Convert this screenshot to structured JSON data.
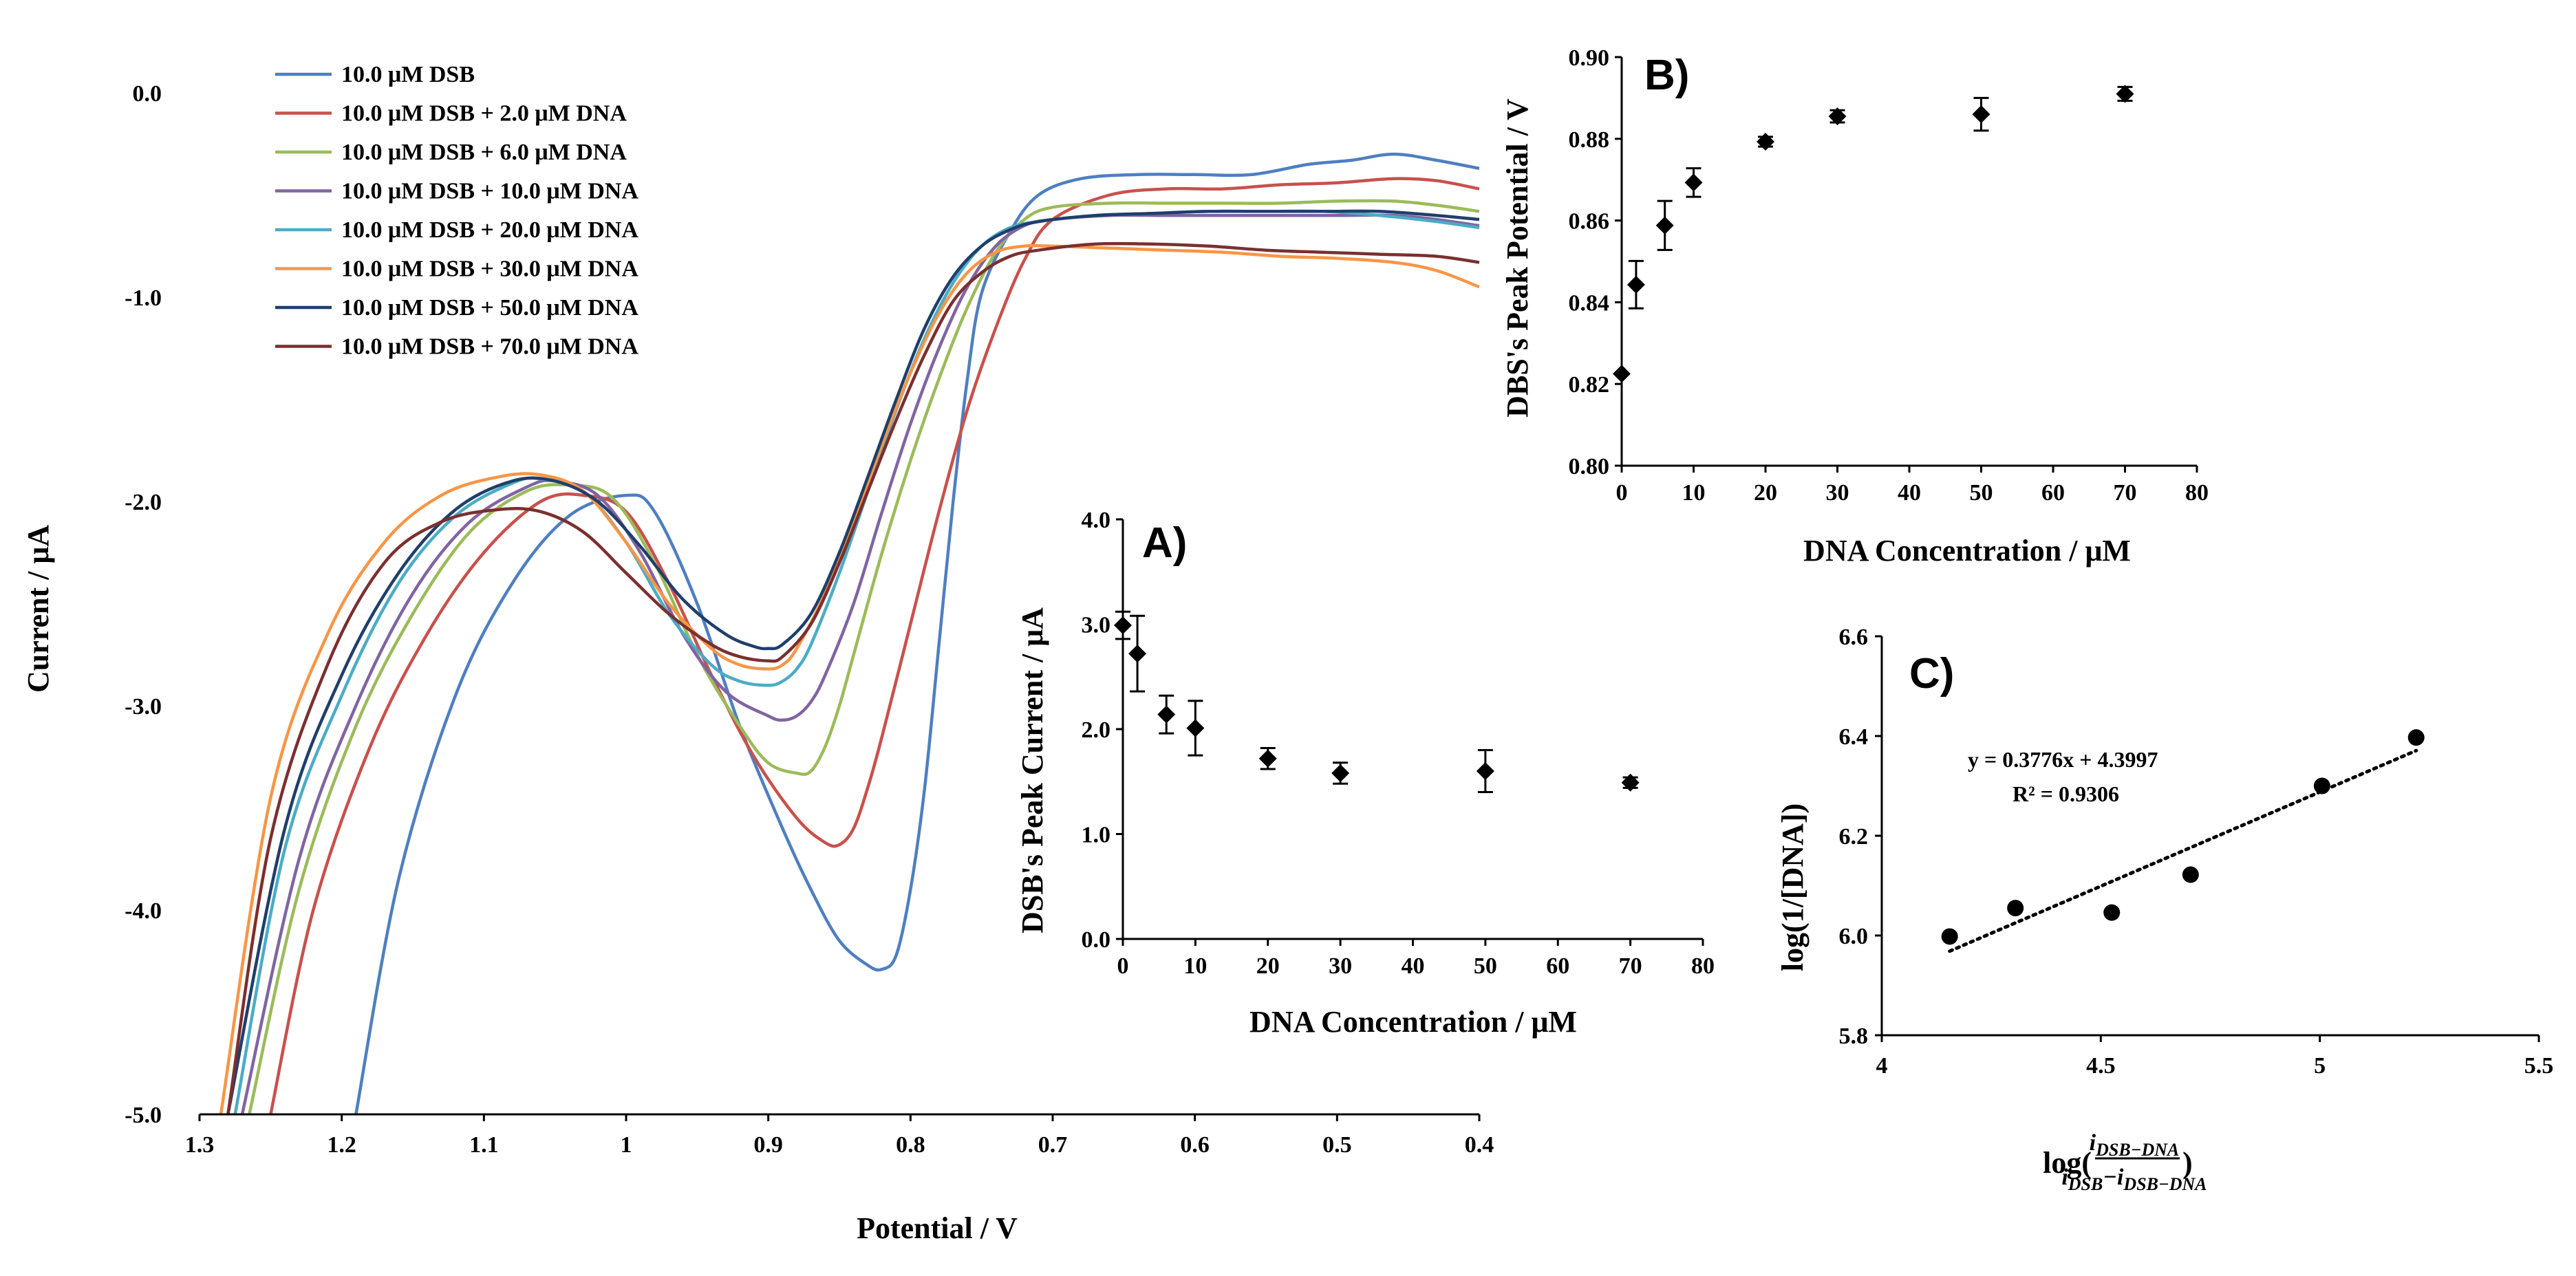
{
  "chart_data": [
    {
      "id": "main",
      "type": "line",
      "title": "",
      "xlabel": "Potential / V",
      "ylabel": "Current / μA",
      "xlim": [
        1.3,
        0.4
      ],
      "ylim": [
        -5.0,
        0.0
      ],
      "xticks": [
        1.3,
        1.2,
        1.1,
        1.0,
        0.9,
        0.8,
        0.7,
        0.6,
        0.5,
        0.4
      ],
      "xtick_labels": [
        "1.3",
        "1.2",
        "1.1",
        "1",
        "0.9",
        "0.8",
        "0.7",
        "0.6",
        "0.5",
        "0.4"
      ],
      "yticks": [
        0,
        -1,
        -2,
        -3,
        -4,
        -5
      ],
      "ytick_labels": [
        "0.0",
        "-1.0",
        "-2.0",
        "-3.0",
        "-4.0",
        "-5.0"
      ],
      "grid": false,
      "legend_position": "top-left",
      "series": [
        {
          "name": "10.0 μM DSB",
          "color": "#4e7fc0",
          "x": [
            1.19,
            1.16,
            1.12,
            1.08,
            1.04,
            1.0,
            0.98,
            0.95,
            0.92,
            0.89,
            0.87,
            0.85,
            0.83,
            0.82,
            0.81,
            0.8,
            0.79,
            0.78,
            0.77,
            0.76,
            0.75,
            0.73,
            0.71,
            0.68,
            0.64,
            0.6,
            0.56,
            0.52,
            0.49,
            0.46,
            0.43,
            0.4
          ],
          "y": [
            -5.0,
            -3.85,
            -2.95,
            -2.4,
            -2.07,
            -1.97,
            -2.05,
            -2.5,
            -3.1,
            -3.6,
            -3.9,
            -4.15,
            -4.27,
            -4.29,
            -4.22,
            -3.9,
            -3.4,
            -2.7,
            -2.0,
            -1.4,
            -0.98,
            -0.68,
            -0.5,
            -0.42,
            -0.4,
            -0.4,
            -0.4,
            -0.35,
            -0.33,
            -0.3,
            -0.33,
            -0.37
          ]
        },
        {
          "name": "10.0 μM DSB + 2.0 μM DNA",
          "color": "#c9504c",
          "x": [
            1.25,
            1.22,
            1.18,
            1.14,
            1.1,
            1.06,
            1.03,
            1.0,
            0.97,
            0.94,
            0.91,
            0.88,
            0.86,
            0.85,
            0.84,
            0.83,
            0.82,
            0.8,
            0.78,
            0.76,
            0.74,
            0.72,
            0.7,
            0.66,
            0.62,
            0.58,
            0.54,
            0.5,
            0.46,
            0.43,
            0.4
          ],
          "y": [
            -5.0,
            -4.0,
            -3.2,
            -2.65,
            -2.25,
            -2.0,
            -1.97,
            -2.05,
            -2.4,
            -2.85,
            -3.25,
            -3.55,
            -3.67,
            -3.68,
            -3.6,
            -3.4,
            -3.15,
            -2.6,
            -2.05,
            -1.55,
            -1.15,
            -0.82,
            -0.62,
            -0.5,
            -0.47,
            -0.47,
            -0.45,
            -0.44,
            -0.42,
            -0.43,
            -0.47
          ]
        },
        {
          "name": "10.0 μM DSB + 6.0 μM DNA",
          "color": "#9bbb59",
          "x": [
            1.265,
            1.23,
            1.19,
            1.15,
            1.11,
            1.07,
            1.04,
            1.01,
            0.98,
            0.95,
            0.92,
            0.9,
            0.88,
            0.87,
            0.86,
            0.85,
            0.84,
            0.82,
            0.8,
            0.78,
            0.76,
            0.74,
            0.72,
            0.7,
            0.66,
            0.62,
            0.58,
            0.54,
            0.5,
            0.46,
            0.43,
            0.4
          ],
          "y": [
            -5.0,
            -3.9,
            -3.1,
            -2.55,
            -2.15,
            -1.95,
            -1.92,
            -1.98,
            -2.3,
            -2.75,
            -3.1,
            -3.28,
            -3.33,
            -3.32,
            -3.2,
            -3.0,
            -2.75,
            -2.25,
            -1.8,
            -1.4,
            -1.05,
            -0.78,
            -0.62,
            -0.56,
            -0.54,
            -0.54,
            -0.54,
            -0.54,
            -0.53,
            -0.53,
            -0.55,
            -0.58
          ]
        },
        {
          "name": "10.0 μM DSB + 10.0 μM DNA",
          "color": "#8064a2",
          "x": [
            1.27,
            1.23,
            1.19,
            1.15,
            1.11,
            1.07,
            1.05,
            1.02,
            0.99,
            0.96,
            0.93,
            0.9,
            0.89,
            0.88,
            0.87,
            0.86,
            0.84,
            0.82,
            0.8,
            0.78,
            0.76,
            0.74,
            0.72,
            0.7,
            0.66,
            0.62,
            0.58,
            0.54,
            0.5,
            0.46,
            0.43,
            0.4
          ],
          "y": [
            -5.0,
            -3.75,
            -3.0,
            -2.45,
            -2.1,
            -1.93,
            -1.9,
            -1.97,
            -2.25,
            -2.65,
            -2.93,
            -3.05,
            -3.07,
            -3.05,
            -2.98,
            -2.85,
            -2.5,
            -2.05,
            -1.62,
            -1.25,
            -0.95,
            -0.75,
            -0.65,
            -0.62,
            -0.6,
            -0.6,
            -0.6,
            -0.6,
            -0.6,
            -0.6,
            -0.62,
            -0.65
          ]
        },
        {
          "name": "10.0 μM DSB + 20.0 μM DNA",
          "color": "#4bacc6",
          "x": [
            1.275,
            1.24,
            1.2,
            1.16,
            1.12,
            1.08,
            1.06,
            1.03,
            1.0,
            0.97,
            0.94,
            0.92,
            0.9,
            0.89,
            0.88,
            0.87,
            0.85,
            0.83,
            0.81,
            0.79,
            0.77,
            0.75,
            0.73,
            0.71,
            0.67,
            0.63,
            0.59,
            0.55,
            0.51,
            0.47,
            0.43,
            0.4
          ],
          "y": [
            -5.0,
            -3.7,
            -2.95,
            -2.4,
            -2.07,
            -1.91,
            -1.89,
            -1.95,
            -2.2,
            -2.55,
            -2.8,
            -2.88,
            -2.9,
            -2.88,
            -2.82,
            -2.7,
            -2.35,
            -1.95,
            -1.55,
            -1.2,
            -0.93,
            -0.75,
            -0.66,
            -0.63,
            -0.6,
            -0.59,
            -0.58,
            -0.58,
            -0.58,
            -0.6,
            -0.63,
            -0.66
          ]
        },
        {
          "name": "10.0 μM DSB + 30.0 μM DNA",
          "color": "#f79646",
          "x": [
            1.285,
            1.25,
            1.21,
            1.17,
            1.13,
            1.09,
            1.06,
            1.03,
            1.0,
            0.97,
            0.94,
            0.92,
            0.9,
            0.89,
            0.88,
            0.86,
            0.84,
            0.82,
            0.8,
            0.78,
            0.76,
            0.74,
            0.72,
            0.7,
            0.66,
            0.62,
            0.58,
            0.54,
            0.5,
            0.46,
            0.43,
            0.4
          ],
          "y": [
            -5.0,
            -3.45,
            -2.65,
            -2.2,
            -1.97,
            -1.88,
            -1.87,
            -1.95,
            -2.2,
            -2.5,
            -2.72,
            -2.8,
            -2.82,
            -2.8,
            -2.72,
            -2.45,
            -2.1,
            -1.72,
            -1.37,
            -1.08,
            -0.88,
            -0.78,
            -0.75,
            -0.75,
            -0.76,
            -0.77,
            -0.78,
            -0.8,
            -0.81,
            -0.83,
            -0.87,
            -0.95
          ]
        },
        {
          "name": "10.0 μM DSB + 50.0 μM DNA",
          "color": "#1f3f6b",
          "x": [
            1.28,
            1.24,
            1.2,
            1.16,
            1.12,
            1.08,
            1.05,
            1.02,
            0.99,
            0.96,
            0.93,
            0.91,
            0.9,
            0.89,
            0.87,
            0.85,
            0.83,
            0.81,
            0.79,
            0.77,
            0.75,
            0.73,
            0.71,
            0.67,
            0.63,
            0.59,
            0.55,
            0.51,
            0.47,
            0.43,
            0.4
          ],
          "y": [
            -5.0,
            -3.6,
            -2.85,
            -2.35,
            -2.04,
            -1.9,
            -1.9,
            -2.0,
            -2.22,
            -2.48,
            -2.65,
            -2.71,
            -2.72,
            -2.7,
            -2.55,
            -2.25,
            -1.88,
            -1.5,
            -1.15,
            -0.9,
            -0.75,
            -0.67,
            -0.63,
            -0.6,
            -0.59,
            -0.58,
            -0.58,
            -0.58,
            -0.58,
            -0.6,
            -0.62
          ]
        },
        {
          "name": "10.0 μM DSB + 70.0 μM DNA",
          "color": "#7b2f2f",
          "x": [
            1.28,
            1.25,
            1.21,
            1.17,
            1.13,
            1.09,
            1.06,
            1.03,
            1.0,
            0.97,
            0.94,
            0.92,
            0.9,
            0.89,
            0.87,
            0.85,
            0.83,
            0.81,
            0.79,
            0.77,
            0.75,
            0.73,
            0.71,
            0.67,
            0.63,
            0.59,
            0.55,
            0.51,
            0.47,
            0.43,
            0.4
          ],
          "y": [
            -5.0,
            -3.65,
            -2.8,
            -2.3,
            -2.1,
            -2.04,
            -2.05,
            -2.15,
            -2.35,
            -2.55,
            -2.7,
            -2.76,
            -2.78,
            -2.76,
            -2.6,
            -2.3,
            -1.95,
            -1.6,
            -1.28,
            -1.02,
            -0.88,
            -0.8,
            -0.77,
            -0.74,
            -0.74,
            -0.75,
            -0.77,
            -0.78,
            -0.79,
            -0.8,
            -0.83
          ]
        }
      ]
    },
    {
      "id": "A",
      "panel_label": "A)",
      "type": "scatter",
      "xlabel": "DNA Concentration / μM",
      "ylabel": "DSB's Peak Current / μA",
      "xlim": [
        0,
        80
      ],
      "ylim": [
        0.0,
        4.0
      ],
      "xticks": [
        0,
        10,
        20,
        30,
        40,
        50,
        60,
        70,
        80
      ],
      "xtick_labels": [
        "0",
        "10",
        "20",
        "30",
        "40",
        "50",
        "60",
        "70",
        "80"
      ],
      "yticks": [
        0,
        1,
        2,
        3,
        4
      ],
      "ytick_labels": [
        "0.0",
        "1.0",
        "2.0",
        "3.0",
        "4.0"
      ],
      "grid": false,
      "x": [
        0,
        2,
        6,
        10,
        20,
        30,
        50,
        70
      ],
      "y": [
        2.99,
        2.72,
        2.14,
        2.01,
        1.72,
        1.58,
        1.6,
        1.49
      ],
      "yerr": [
        0.13,
        0.36,
        0.18,
        0.26,
        0.1,
        0.1,
        0.2,
        0.05
      ]
    },
    {
      "id": "B",
      "panel_label": "B)",
      "type": "scatter",
      "xlabel": "DNA Concentration / μM",
      "ylabel": "DBS's Peak Potential / V",
      "xlim": [
        0,
        80
      ],
      "ylim": [
        0.8,
        0.9
      ],
      "xticks": [
        0,
        10,
        20,
        30,
        40,
        50,
        60,
        70,
        80
      ],
      "xtick_labels": [
        "0",
        "10",
        "20",
        "30",
        "40",
        "50",
        "60",
        "70",
        "80"
      ],
      "yticks": [
        0.8,
        0.82,
        0.84,
        0.86,
        0.88,
        0.9
      ],
      "ytick_labels": [
        "0.80",
        "0.82",
        "0.84",
        "0.86",
        "0.88",
        "0.90"
      ],
      "grid": false,
      "x": [
        0,
        2,
        6,
        10,
        20,
        30,
        50,
        70
      ],
      "y": [
        0.8225,
        0.8443,
        0.8588,
        0.8693,
        0.8793,
        0.8855,
        0.886,
        0.891
      ],
      "yerr": [
        0.0,
        0.0058,
        0.006,
        0.0035,
        0.0012,
        0.0015,
        0.004,
        0.0017
      ]
    },
    {
      "id": "C",
      "panel_label": "C)",
      "type": "scatter",
      "xlabel_prefix": "log(",
      "xlabel_numerator": "i",
      "xlabel_numerator_sub": "DSB−DNA",
      "xlabel_denominator": "i",
      "xlabel_denominator_sub": "DSB",
      "xlabel_denominator_minus": "−i",
      "xlabel_denominator_sub2": "DSB−DNA",
      "xlabel_suffix": ")",
      "ylabel": "log(1/[DNA])",
      "xlim": [
        4,
        5.5
      ],
      "ylim": [
        5.8,
        6.6
      ],
      "xticks": [
        4,
        4.5,
        5,
        5.5
      ],
      "xtick_labels": [
        "4",
        "4.5",
        "5",
        "5.5"
      ],
      "yticks": [
        5.8,
        6.0,
        6.2,
        6.4,
        6.6
      ],
      "ytick_labels": [
        "5.8",
        "6.0",
        "6.2",
        "6.4",
        "6.6"
      ],
      "grid": false,
      "x": [
        4.155,
        4.305,
        4.525,
        4.705,
        5.005,
        5.22
      ],
      "y": [
        5.998,
        6.055,
        6.046,
        6.122,
        6.3,
        6.397
      ],
      "trendline": {
        "type": "linear",
        "slope": 0.3776,
        "intercept": 4.3997,
        "x_range": [
          4.155,
          5.22
        ]
      },
      "equation": "y = 0.3776x + 4.3997",
      "r_squared": "R² = 0.9306"
    }
  ]
}
